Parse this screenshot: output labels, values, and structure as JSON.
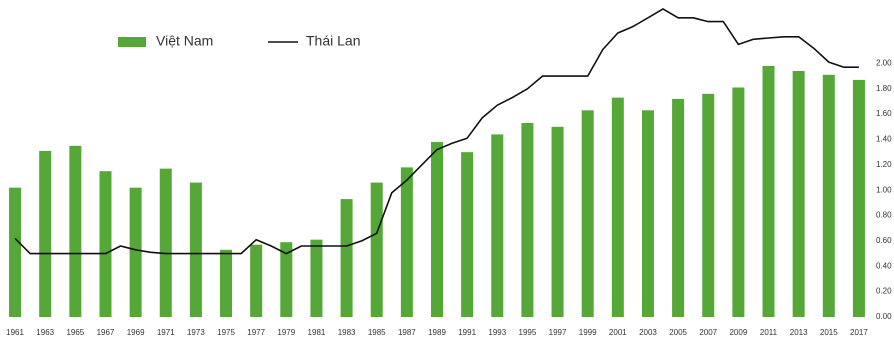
{
  "chart_data": {
    "type": "bar",
    "x": [
      1961,
      1962,
      1963,
      1964,
      1965,
      1966,
      1967,
      1968,
      1969,
      1970,
      1971,
      1972,
      1973,
      1974,
      1975,
      1976,
      1977,
      1978,
      1979,
      1980,
      1981,
      1982,
      1983,
      1984,
      1985,
      1986,
      1987,
      1988,
      1989,
      1990,
      1991,
      1992,
      1993,
      1994,
      1995,
      1996,
      1997,
      1998,
      1999,
      2000,
      2001,
      2002,
      2003,
      2004,
      2005,
      2006,
      2007,
      2008,
      2009,
      2010,
      2011,
      2012,
      2013,
      2014,
      2015,
      2016,
      2017
    ],
    "series": [
      {
        "name": "Việt Nam",
        "type": "bar",
        "color": "#55a737",
        "values": [
          1.02,
          null,
          1.31,
          null,
          1.35,
          null,
          1.15,
          null,
          1.02,
          null,
          1.17,
          null,
          1.06,
          null,
          0.53,
          null,
          0.57,
          null,
          0.59,
          null,
          0.61,
          null,
          0.93,
          null,
          1.06,
          null,
          1.18,
          null,
          1.38,
          null,
          1.3,
          null,
          1.44,
          null,
          1.53,
          null,
          1.5,
          null,
          1.63,
          null,
          1.73,
          null,
          1.63,
          null,
          1.72,
          null,
          1.76,
          null,
          1.81,
          null,
          1.98,
          null,
          1.94,
          null,
          1.91,
          null,
          1.87
        ]
      },
      {
        "name": "Thái Lan",
        "type": "line",
        "color": "#111111",
        "values": [
          0.62,
          0.5,
          0.5,
          0.5,
          0.5,
          0.5,
          0.5,
          0.56,
          0.53,
          0.51,
          0.5,
          0.5,
          0.5,
          0.5,
          0.5,
          0.5,
          0.61,
          0.56,
          0.5,
          0.56,
          0.56,
          0.56,
          0.56,
          0.6,
          0.66,
          0.98,
          1.08,
          1.2,
          1.32,
          1.37,
          1.41,
          1.57,
          1.67,
          1.73,
          1.8,
          1.9,
          1.9,
          1.9,
          1.9,
          2.11,
          2.24,
          2.29,
          2.36,
          2.43,
          2.36,
          2.36,
          2.33,
          2.33,
          2.15,
          2.19,
          2.2,
          2.21,
          2.21,
          2.12,
          2.01,
          1.97,
          1.97
        ]
      }
    ],
    "xlim": [
      1960,
      2018
    ],
    "xticks": [
      1961,
      1963,
      1965,
      1967,
      1969,
      1971,
      1973,
      1975,
      1977,
      1979,
      1981,
      1983,
      1985,
      1987,
      1989,
      1991,
      1993,
      1995,
      1997,
      1999,
      2001,
      2003,
      2005,
      2007,
      2009,
      2011,
      2013,
      2015,
      2017
    ],
    "ylim": [
      0,
      2.5
    ],
    "yticks": [
      {
        "value": 0,
        "label": "0.00"
      },
      {
        "value": 0.2,
        "label": "0.20"
      },
      {
        "value": 0.4,
        "label": "0.40"
      },
      {
        "value": 0.6,
        "label": "0.60"
      },
      {
        "value": 0.8,
        "label": "0.80"
      },
      {
        "value": 1,
        "label": "1.00"
      },
      {
        "value": 1.2,
        "label": "1.20"
      },
      {
        "value": 1.4,
        "label": "1.40"
      },
      {
        "value": 1.6,
        "label": "1.60"
      },
      {
        "value": 1.8,
        "label": "1.80"
      },
      {
        "value": 2,
        "label": "2.00"
      }
    ],
    "legend": "top-left"
  }
}
